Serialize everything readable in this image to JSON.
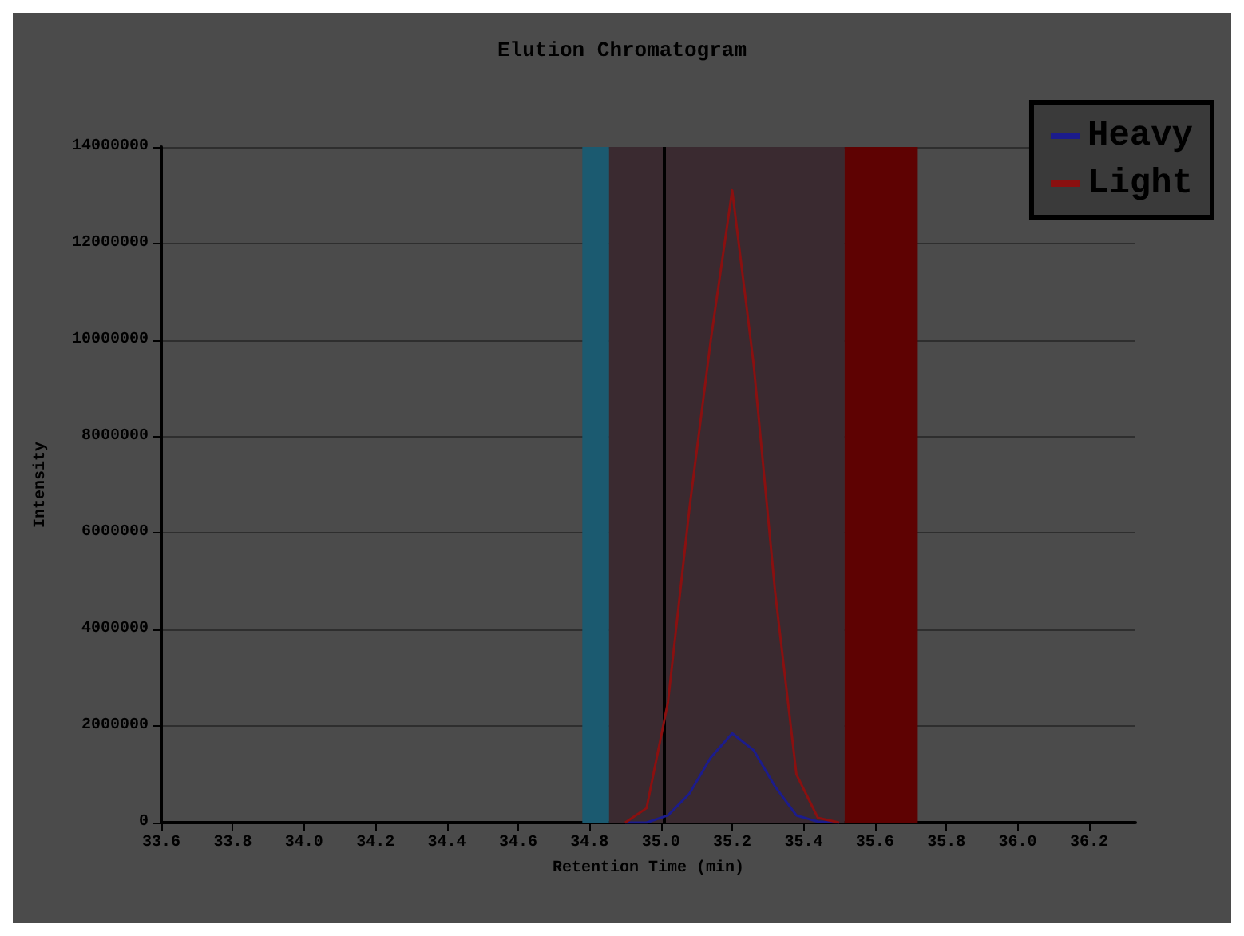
{
  "chart_data": {
    "type": "line",
    "title": "Elution Chromatogram",
    "xlabel": "Retention Time (min)",
    "ylabel": "Intensity",
    "xlim": [
      33.6,
      36.33
    ],
    "xticks": [
      33.6,
      33.8,
      {
        "value": 34,
        "label": "34.0"
      },
      34.2,
      34.4,
      34.6,
      34.8,
      {
        "value": 35,
        "label": "35.0"
      },
      35.2,
      35.4,
      35.6,
      35.8,
      {
        "value": 36,
        "label": "36.0"
      },
      36.2
    ],
    "ylim": [
      0,
      14000000
    ],
    "yticks": [
      0,
      2000000,
      4000000,
      6000000,
      8000000,
      10000000,
      12000000,
      14000000
    ],
    "x": [
      34.9,
      34.96,
      35.02,
      35.08,
      35.14,
      35.2,
      35.26,
      35.32,
      35.38,
      35.44,
      35.5
    ],
    "series": [
      {
        "name": "Heavy",
        "color": "#1c1c8c",
        "values": [
          0,
          0,
          150000,
          600000,
          1350000,
          1850000,
          1500000,
          750000,
          150000,
          20000,
          0
        ]
      },
      {
        "name": "Light",
        "color": "#8a1010",
        "values": [
          0,
          300000,
          2500000,
          6500000,
          10000000,
          13100000,
          9500000,
          4800000,
          1000000,
          100000,
          0
        ]
      }
    ],
    "bands": [
      {
        "axis": "x",
        "from": 34.78,
        "to": 34.855,
        "color": "#1b5a70"
      },
      {
        "axis": "x",
        "from": 34.855,
        "to": 35.515,
        "color": "#3a2a30"
      },
      {
        "axis": "x",
        "from": 35.515,
        "to": 35.72,
        "color": "#5e0202"
      }
    ],
    "ref_lines": [
      {
        "axis": "x",
        "value": 35.01,
        "color": "#000000"
      }
    ],
    "grid": "y",
    "legend": "top right",
    "marker": "none",
    "line_style": "solid"
  }
}
